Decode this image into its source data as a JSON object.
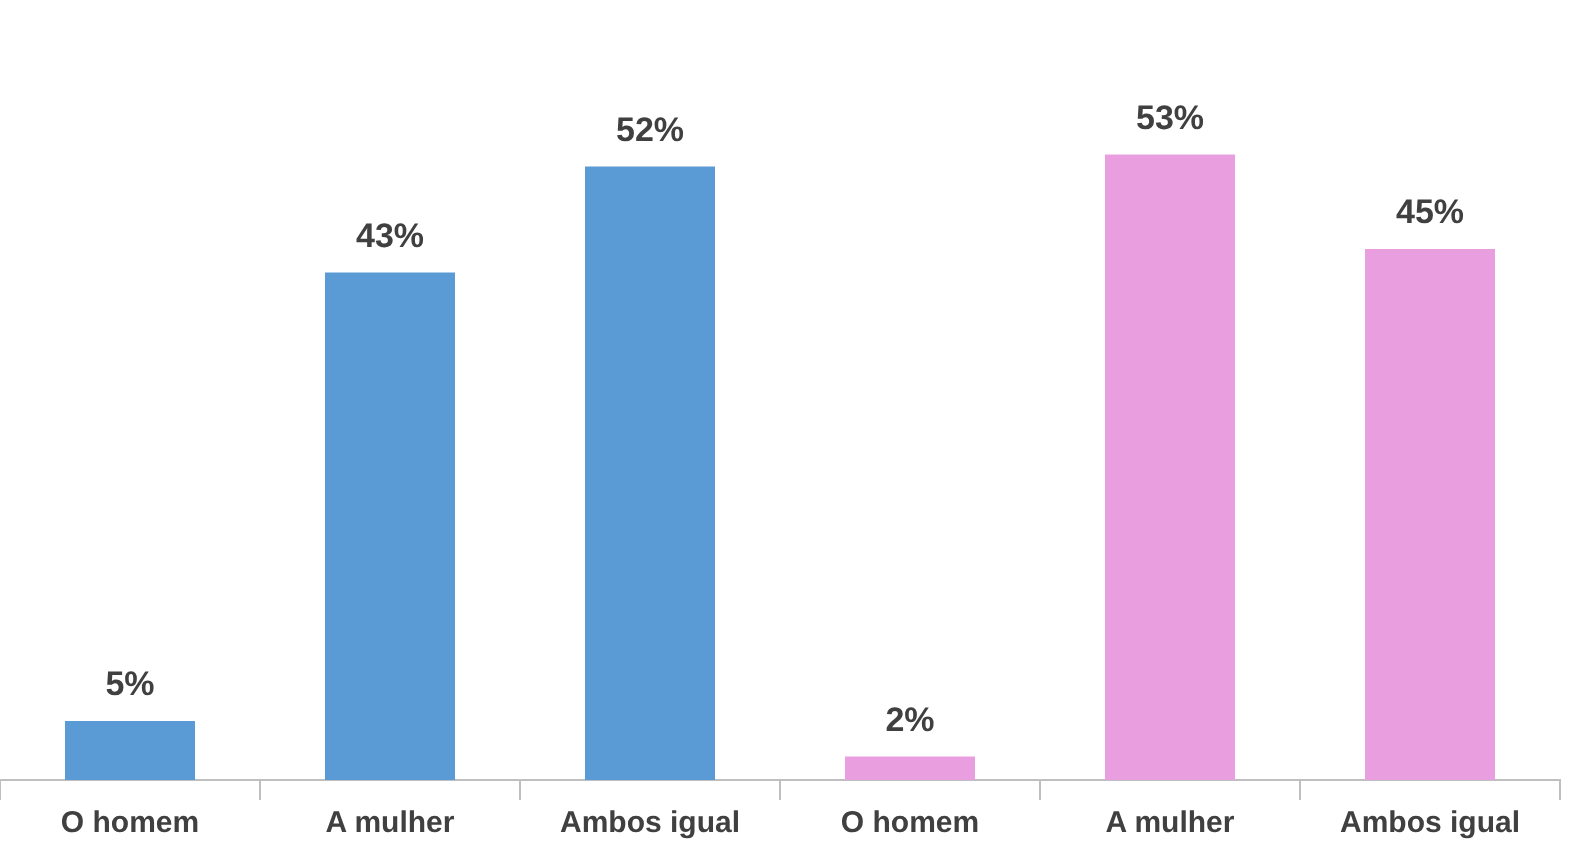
{
  "chart_data": {
    "type": "bar",
    "categories": [
      "O homem",
      "A mulher",
      "Ambos igual",
      "O homem",
      "A mulher",
      "Ambos igual"
    ],
    "values": [
      5,
      43,
      52,
      2,
      53,
      45
    ],
    "colors": [
      "#5b9bd5",
      "#5b9bd5",
      "#5b9bd5",
      "#e99fdf",
      "#e99fdf",
      "#e99fdf"
    ],
    "value_labels": [
      "5%",
      "43%",
      "52%",
      "2%",
      "53%",
      "45%"
    ],
    "grid": false,
    "legend": false
  }
}
